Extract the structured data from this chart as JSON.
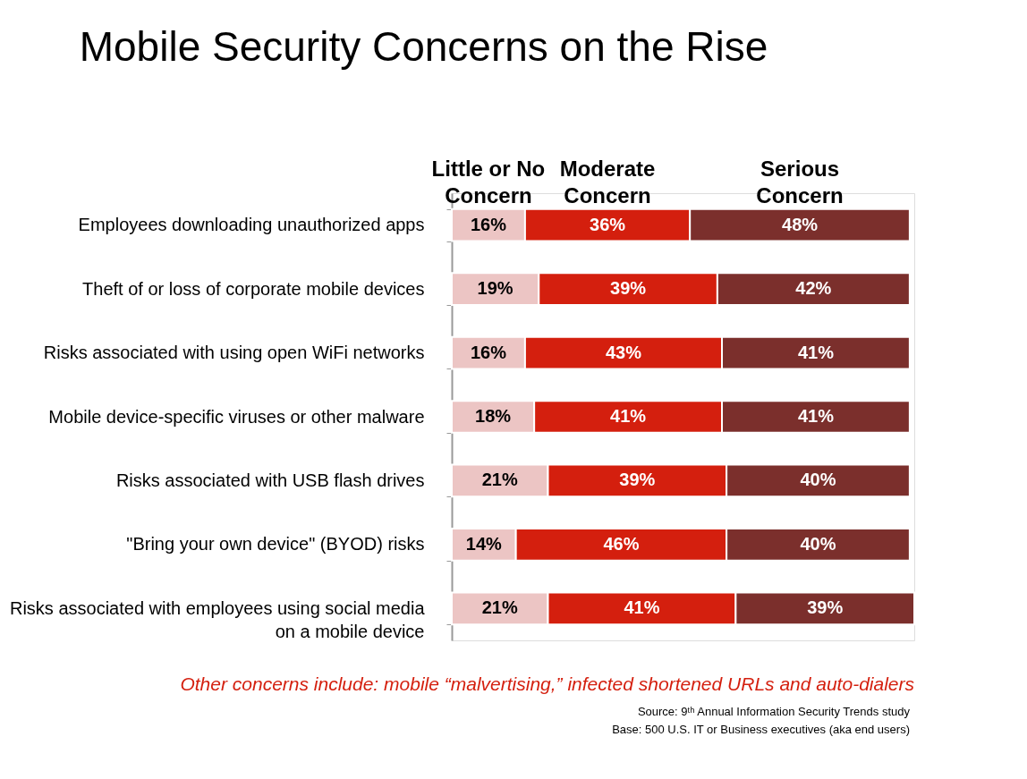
{
  "chart_data": {
    "type": "bar",
    "orientation": "horizontal",
    "stacked": true,
    "title": "Mobile Security Concerns on the Rise",
    "categories": [
      "Employees downloading unauthorized apps",
      "Theft of or loss of corporate mobile devices",
      "Risks associated with using open WiFi networks",
      "Mobile device-specific viruses or other malware",
      "Risks associated with USB flash drives",
      "\"Bring your own device\" (BYOD) risks",
      "Risks associated with employees using social media on a mobile device"
    ],
    "tick_labels": "y",
    "series": [
      {
        "name": "Little or No Concern",
        "color": "#ecc5c4",
        "values": [
          16,
          19,
          16,
          18,
          21,
          14,
          21
        ],
        "value_labels": [
          "16%",
          "19%",
          "16%",
          "18%",
          "21%",
          "14%",
          "21%"
        ]
      },
      {
        "name": "Moderate Concern",
        "color": "#d41f0e",
        "values": [
          36,
          39,
          43,
          41,
          39,
          46,
          41
        ],
        "value_labels": [
          "36%",
          "39%",
          "43%",
          "41%",
          "39%",
          "46%",
          "41%"
        ]
      },
      {
        "name": "Serious Concern",
        "color": "#7b2f2c",
        "values": [
          48,
          42,
          41,
          41,
          40,
          40,
          39
        ],
        "value_labels": [
          "48%",
          "42%",
          "41%",
          "41%",
          "40%",
          "40%",
          "39%"
        ]
      }
    ],
    "annotations": [
      "Other concerns include: mobile “malvertising,” infected shortened URLs and auto-dialers",
      "Source: 9ᵗʰ Annual Information Security Trends study",
      "Base: 500 U.S. IT or Business executives (aka end users)"
    ]
  }
}
